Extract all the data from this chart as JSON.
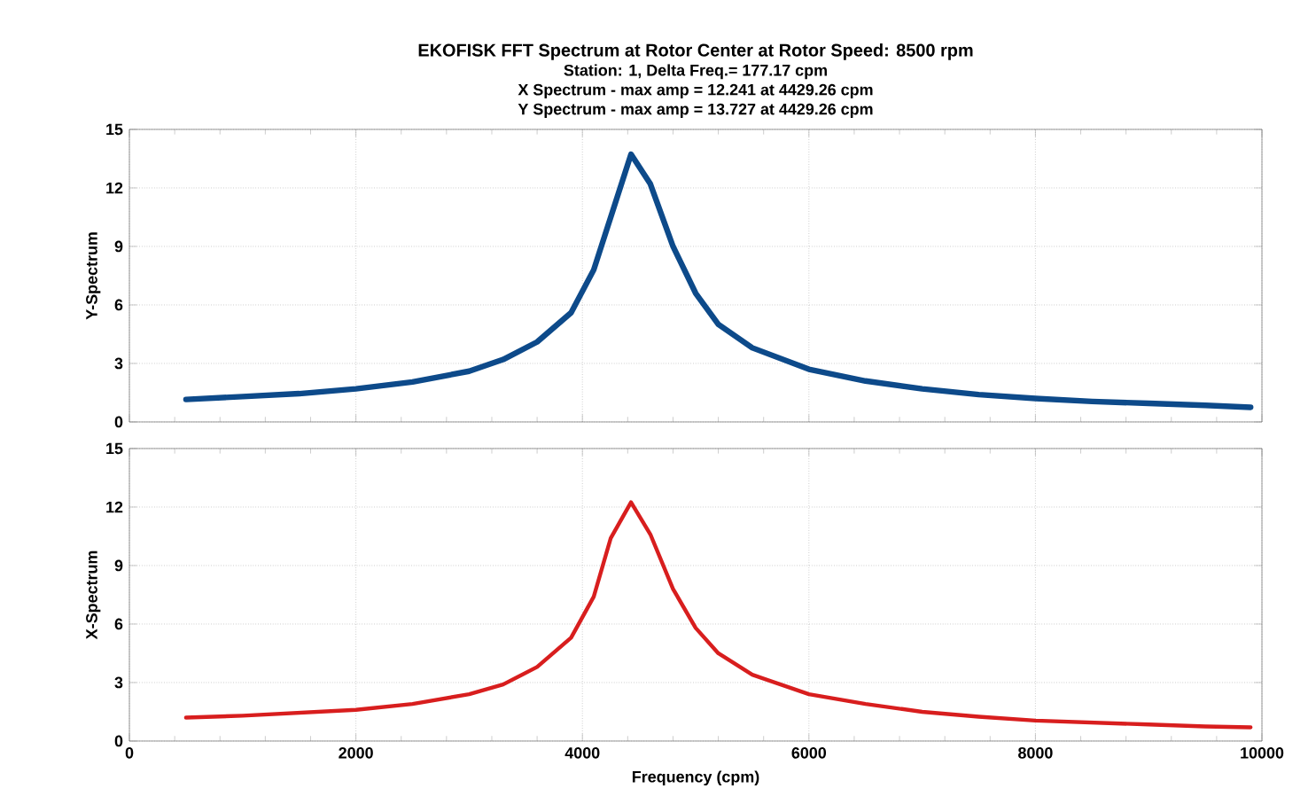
{
  "chart_data": [
    {
      "type": "line",
      "title": "EKOFISK FFT Spectrum at Rotor Center at Rotor Speed: 8500 rpm",
      "subtitle": "Station: 1,  Delta Freq.= 177.17 cpm",
      "annotations": [
        "X Spectrum - max amp = 12.241  at 4429.26 cpm",
        "Y Spectrum - max amp = 13.727  at 4429.26 cpm"
      ],
      "ylabel": "Y-Spectrum",
      "x": [
        500,
        1000,
        1500,
        2000,
        2500,
        3000,
        3300,
        3600,
        3900,
        4100,
        4250,
        4429.26,
        4600,
        4800,
        5000,
        5200,
        5500,
        6000,
        6500,
        7000,
        7500,
        8000,
        8500,
        9000,
        9500,
        9900
      ],
      "series": [
        {
          "color": "#0d4a8a",
          "values": [
            1.15,
            1.3,
            1.45,
            1.7,
            2.05,
            2.6,
            3.2,
            4.1,
            5.6,
            7.8,
            10.5,
            13.727,
            12.2,
            9.0,
            6.6,
            5.0,
            3.8,
            2.7,
            2.1,
            1.7,
            1.4,
            1.2,
            1.05,
            0.95,
            0.85,
            0.75
          ]
        }
      ],
      "xlim": [
        0,
        10000
      ],
      "xticks": [
        0,
        2000,
        4000,
        6000,
        8000,
        10000
      ],
      "ylim": [
        0,
        15
      ],
      "yticks": [
        0,
        3,
        6,
        9,
        12,
        15
      ],
      "grid": true,
      "tick_labels": "y"
    },
    {
      "type": "line",
      "xlabel": "Frequency (cpm)",
      "ylabel": "X-Spectrum",
      "x": [
        500,
        1000,
        1500,
        2000,
        2500,
        3000,
        3300,
        3600,
        3900,
        4100,
        4250,
        4429.26,
        4600,
        4800,
        5000,
        5200,
        5500,
        6000,
        6500,
        7000,
        7500,
        8000,
        8500,
        9000,
        9500,
        9900
      ],
      "series": [
        {
          "color": "#d81e1e",
          "values": [
            1.2,
            1.3,
            1.45,
            1.6,
            1.9,
            2.4,
            2.9,
            3.8,
            5.3,
            7.4,
            10.4,
            12.241,
            10.6,
            7.8,
            5.8,
            4.5,
            3.4,
            2.4,
            1.9,
            1.5,
            1.25,
            1.05,
            0.95,
            0.85,
            0.75,
            0.7
          ]
        }
      ],
      "xlim": [
        0,
        10000
      ],
      "xticks": [
        0,
        2000,
        4000,
        6000,
        8000,
        10000
      ],
      "ylim": [
        0,
        15
      ],
      "yticks": [
        0,
        3,
        6,
        9,
        12,
        15
      ],
      "grid": true
    }
  ]
}
